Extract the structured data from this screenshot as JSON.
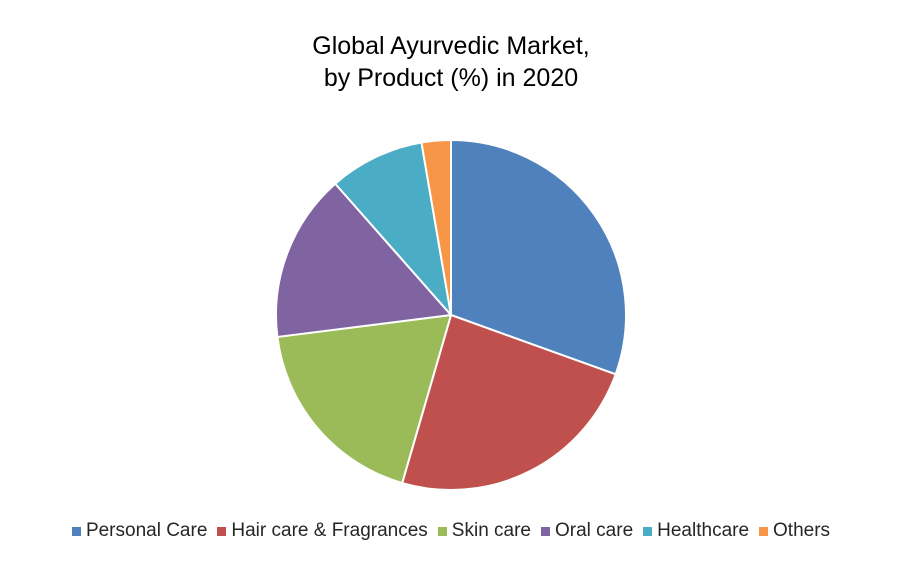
{
  "chart_data": {
    "type": "pie",
    "title_lines": [
      "Global Ayurvedic Market,",
      "by Product (%) in 2020"
    ],
    "legend_position": "bottom",
    "start_angle_deg": 0,
    "direction": "clockwise",
    "slices": [
      {
        "label": "Personal Care",
        "value": 30.5,
        "color": "#4F81BD"
      },
      {
        "label": "Hair care & Fragrances",
        "value": 24.0,
        "color": "#C0504D"
      },
      {
        "label": "Skin care",
        "value": 18.5,
        "color": "#9BBB59"
      },
      {
        "label": "Oral care",
        "value": 15.5,
        "color": "#8064A2"
      },
      {
        "label": "Healthcare",
        "value": 8.8,
        "color": "#4BACC6"
      },
      {
        "label": "Others",
        "value": 2.7,
        "color": "#F79646"
      }
    ]
  }
}
